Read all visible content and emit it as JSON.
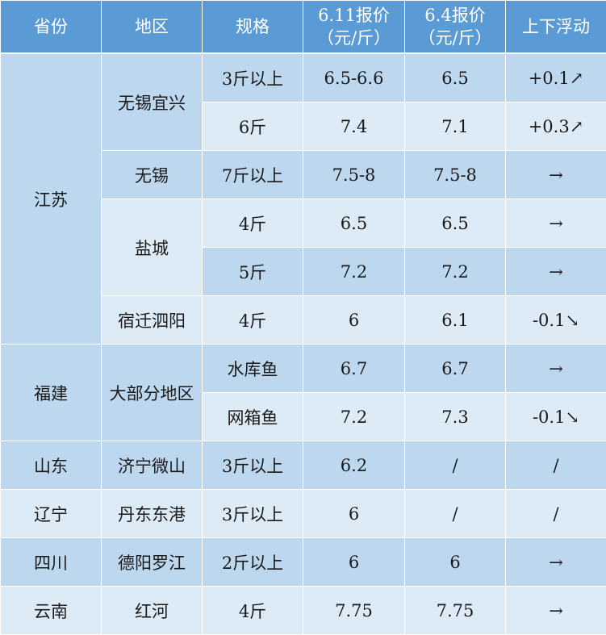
{
  "header": {
    "province": "省份",
    "region": "地区",
    "spec": "规格",
    "price_new": [
      "6.11报价",
      "（元/斤）"
    ],
    "price_old": [
      "6.4报价",
      "（元/斤）"
    ],
    "change": "上下浮动"
  },
  "groups": [
    {
      "province": "江苏",
      "regions": [
        {
          "name": "无锡宜兴",
          "rows": [
            {
              "spec": "3斤以上",
              "price_new": "6.5-6.6",
              "price_old": "6.5",
              "change": "+0.1↗"
            },
            {
              "spec": "6斤",
              "price_new": "7.4",
              "price_old": "7.1",
              "change": "+0.3↗"
            }
          ]
        },
        {
          "name": "无锡",
          "rows": [
            {
              "spec": "7斤以上",
              "price_new": "7.5-8",
              "price_old": "7.5-8",
              "change": "→"
            }
          ]
        },
        {
          "name": "盐城",
          "rows": [
            {
              "spec": "4斤",
              "price_new": "6.5",
              "price_old": "6.5",
              "change": "→"
            },
            {
              "spec": "5斤",
              "price_new": "7.2",
              "price_old": "7.2",
              "change": "→"
            }
          ]
        },
        {
          "name": "宿迁泗阳",
          "rows": [
            {
              "spec": "4斤",
              "price_new": "6",
              "price_old": "6.1",
              "change": "-0.1↘"
            }
          ]
        }
      ]
    },
    {
      "province": "福建",
      "regions": [
        {
          "name": "大部分地区",
          "rows": [
            {
              "spec": "水库鱼",
              "price_new": "6.7",
              "price_old": "6.7",
              "change": "→"
            },
            {
              "spec": "网箱鱼",
              "price_new": "7.2",
              "price_old": "7.3",
              "change": "-0.1↘"
            }
          ]
        }
      ]
    },
    {
      "province": "山东",
      "regions": [
        {
          "name": "济宁微山",
          "rows": [
            {
              "spec": "3斤以上",
              "price_new": "6.2",
              "price_old": "/",
              "change": "/"
            }
          ]
        }
      ]
    },
    {
      "province": "辽宁",
      "regions": [
        {
          "name": "丹东东港",
          "rows": [
            {
              "spec": "3斤以上",
              "price_new": "6",
              "price_old": "/",
              "change": "/"
            }
          ]
        }
      ]
    },
    {
      "province": "四川",
      "regions": [
        {
          "name": "德阳罗江",
          "rows": [
            {
              "spec": "2斤以上",
              "price_new": "6",
              "price_old": "6",
              "change": "→"
            }
          ]
        }
      ]
    },
    {
      "province": "云南",
      "regions": [
        {
          "name": "红河",
          "rows": [
            {
              "spec": "4斤",
              "price_new": "7.75",
              "price_old": "7.75",
              "change": "→"
            }
          ]
        }
      ]
    }
  ],
  "colors": {
    "header_bg": "#5b9bd5",
    "row_dark": "#bdd7ee",
    "row_light": "#ddebf7"
  }
}
